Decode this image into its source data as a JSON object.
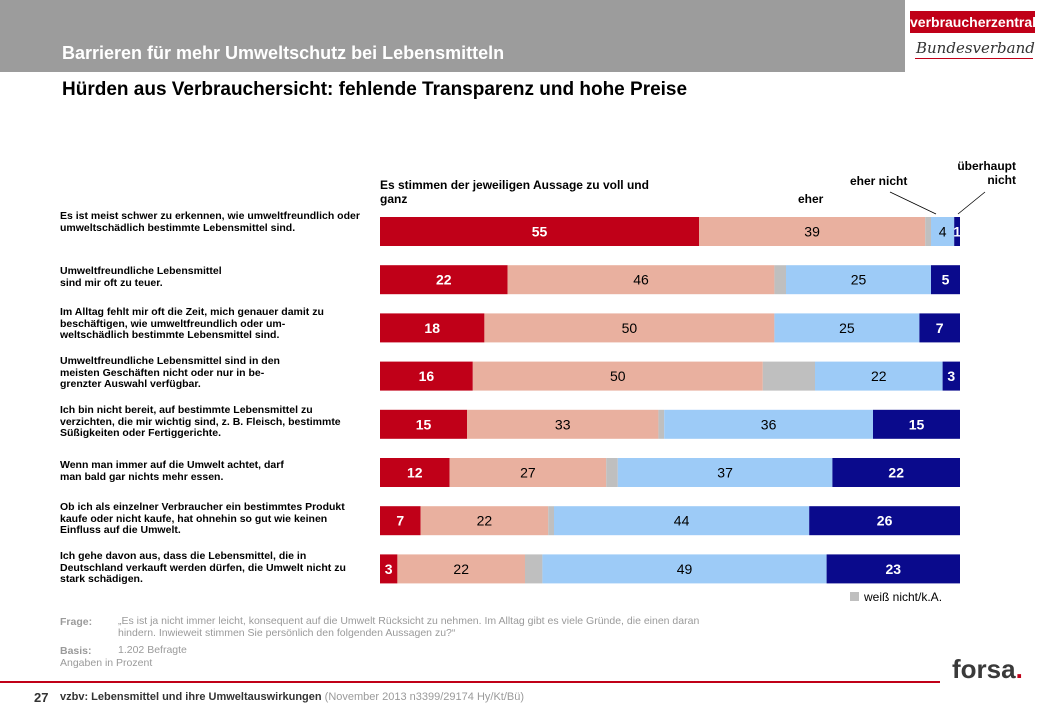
{
  "header": {
    "title": "Barrieren für mehr Umweltschutz bei Lebensmitteln",
    "subtitle": "Hürden aus Verbrauchersicht: fehlende Transparenz und hohe Preise",
    "logo_text": "verbraucherzentrale",
    "logo_sub": "Bundesverband"
  },
  "chart_data": {
    "type": "bar",
    "orientation": "horizontal-stacked",
    "column_headers": {
      "voll": "Es stimmen der jeweiligen Aussage zu voll und ganz",
      "eher": "eher",
      "eher_nicht": "eher nicht",
      "ueberhaupt_nicht": "überhaupt nicht"
    },
    "categories": [
      "Es ist meist schwer zu erkennen, wie umweltfreundlich oder umweltschädlich bestimmte Lebensmittel sind.",
      "Umweltfreundliche Lebensmittel sind mir oft zu teuer.",
      "Im Alltag fehlt mir oft die Zeit, mich genauer damit zu beschäftigen, wie umweltfreundlich oder um- weltschädlich bestimmte Lebensmittel sind.",
      "Umweltfreundliche Lebensmittel sind in den meisten Geschäften nicht oder nur in be- grenzter Auswahl verfügbar.",
      "Ich bin nicht bereit, auf bestimmte Lebensmittel zu verzichten, die mir wichtig sind, z. B. Fleisch, bestimmte Süßigkeiten oder Fertiggerichte.",
      "Wenn man immer auf die Umwelt achtet, darf man bald gar nichts mehr essen.",
      "Ob ich als einzelner Verbraucher ein bestimmtes Produkt kaufe oder nicht kaufe, hat ohnehin so gut wie keinen Einfluss auf die Umwelt.",
      "Ich gehe davon aus, dass die Lebensmittel, die in Deutschland verkauft werden dürfen, die Umwelt nicht zu stark schädigen."
    ],
    "series": [
      {
        "key": "voll",
        "color": "#c00018",
        "text_color": "#ffffff",
        "values": [
          55,
          22,
          18,
          16,
          15,
          12,
          7,
          3
        ],
        "labels": [
          "55",
          "22",
          "18",
          "16",
          "15",
          "12",
          "7",
          "3"
        ]
      },
      {
        "key": "eher",
        "color": "#e9b09f",
        "text_color": "#000000",
        "values": [
          39,
          46,
          50,
          50,
          33,
          27,
          22,
          22
        ],
        "labels": [
          "39",
          "46",
          "50",
          "50",
          "33",
          "27",
          "22",
          "22"
        ]
      },
      {
        "key": "weiss_nicht",
        "color": "#bfbfbf",
        "text_color": "#000000",
        "values": [
          1,
          2,
          0,
          9,
          1,
          2,
          1,
          3
        ],
        "labels": [
          "",
          "",
          "",
          "",
          "",
          "",
          "",
          ""
        ]
      },
      {
        "key": "eher_nicht",
        "color": "#9dcbf7",
        "text_color": "#000000",
        "values": [
          4,
          25,
          25,
          22,
          36,
          37,
          44,
          49
        ],
        "labels": [
          "4",
          "25",
          "25",
          "22",
          "36",
          "37",
          "44",
          "49"
        ]
      },
      {
        "key": "ueberhaupt_nicht",
        "color": "#0a0a8c",
        "text_color": "#ffffff",
        "values": [
          1,
          5,
          7,
          3,
          15,
          22,
          26,
          23
        ],
        "labels": [
          "1",
          "5",
          "7",
          "3",
          "15",
          "22",
          "26",
          "23"
        ]
      }
    ],
    "legend": {
      "label": "weiß nicht/k.A.",
      "color": "#bfbfbf",
      "placement": "bottom-right"
    },
    "xlim": [
      0,
      100
    ]
  },
  "notes": {
    "frage_label": "Frage:",
    "frage_text": "„Es ist ja nicht immer leicht, konsequent auf die Umwelt Rücksicht zu nehmen. Im Alltag gibt es viele Gründe, die einen daran hindern. Inwieweit stimmen Sie persönlich den folgenden Aussagen zu?“",
    "basis_label": "Basis:",
    "basis_text": "1.202 Befragte",
    "angaben": "Angaben in Prozent"
  },
  "footer": {
    "page_number": "27",
    "text": "vzbv: Lebensmittel und ihre Umweltauswirkungen",
    "meta": "(November 2013  n3399/29174  Hy/Kt/Bü)",
    "brand": "forsa",
    "brand_dot": "."
  }
}
